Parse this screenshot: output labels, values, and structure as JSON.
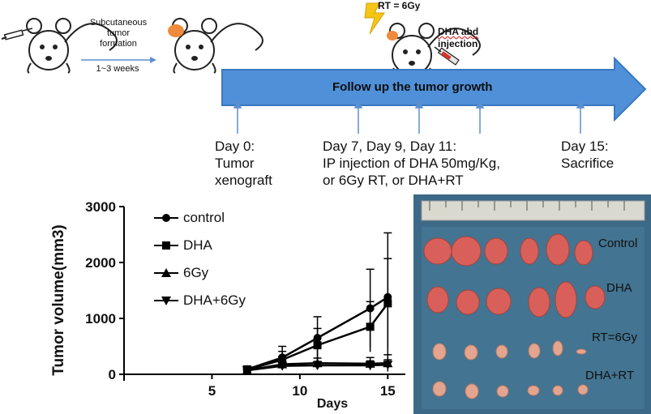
{
  "protocol": {
    "formation_label": [
      "Subcutaneous",
      "tumor",
      "formation"
    ],
    "formation_duration": "1~3 weeks",
    "rt_label": "RT = 6Gy",
    "dha_label": [
      "DHA abd",
      "injection"
    ],
    "banner": "Follow up the tumor growth",
    "timeline": [
      {
        "day": "Day 0:",
        "lines": [
          "Tumor",
          "xenograft"
        ]
      },
      {
        "day": "Day 7, Day 9, Day 11:",
        "lines": [
          "IP injection of DHA 50mg/Kg,",
          "or  6Gy RT, or DHA+RT"
        ]
      },
      {
        "day": "Day 15:",
        "lines": [
          "Sacrifice"
        ]
      }
    ]
  },
  "chart_data": {
    "type": "line",
    "title": "",
    "xlabel": "Days",
    "ylabel": "Tumor volume(mm3)",
    "xlim": [
      0,
      16
    ],
    "ylim": [
      0,
      3000
    ],
    "xticks": [
      5,
      10,
      15
    ],
    "yticks": [
      0,
      1000,
      2000,
      3000
    ],
    "x": [
      7,
      9,
      11,
      14,
      15
    ],
    "series": [
      {
        "name": "control",
        "marker": "circle",
        "values": [
          90,
          300,
          650,
          1180,
          1380
        ],
        "errors": [
          60,
          200,
          380,
          700,
          1150
        ]
      },
      {
        "name": "DHA",
        "marker": "square",
        "values": [
          80,
          260,
          520,
          850,
          1270
        ],
        "errors": [
          50,
          150,
          300,
          450,
          800
        ]
      },
      {
        "name": "6Gy",
        "marker": "triangle",
        "values": [
          70,
          180,
          200,
          190,
          200
        ],
        "errors": [
          30,
          90,
          90,
          110,
          150
        ]
      },
      {
        "name": "DHA+6Gy",
        "marker": "triangle-down",
        "values": [
          70,
          150,
          160,
          160,
          170
        ],
        "errors": [
          30,
          70,
          70,
          80,
          90
        ]
      }
    ]
  },
  "photo": {
    "labels": [
      "Control",
      "DHA",
      "RT=6Gy",
      "DHA+RT"
    ]
  },
  "colors": {
    "banner_fill": "#4f90d8",
    "banner_stroke": "#3a78bf",
    "arrow_line": "#5b8fd0",
    "tumor": "#f08a3c",
    "photo_bg": "#3c6a86"
  }
}
